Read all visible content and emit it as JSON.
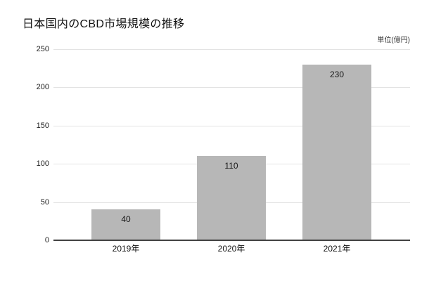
{
  "chart_data": {
    "type": "bar",
    "title": "日本国内のCBD市場規模の推移",
    "unit_label": "単位(億円)",
    "categories": [
      "2019年",
      "2020年",
      "2021年"
    ],
    "values": [
      40,
      110,
      230
    ],
    "ylim": [
      0,
      250
    ],
    "yticks": [
      0,
      50,
      100,
      150,
      200,
      250
    ],
    "grid": true,
    "legend_position": "none",
    "colors": {
      "bar": "#b7b7b7",
      "gridline": "#e3e3e3",
      "axis_line": "#424242",
      "bar_label_text": "#1a1a1a",
      "background": "#ffffff"
    }
  }
}
